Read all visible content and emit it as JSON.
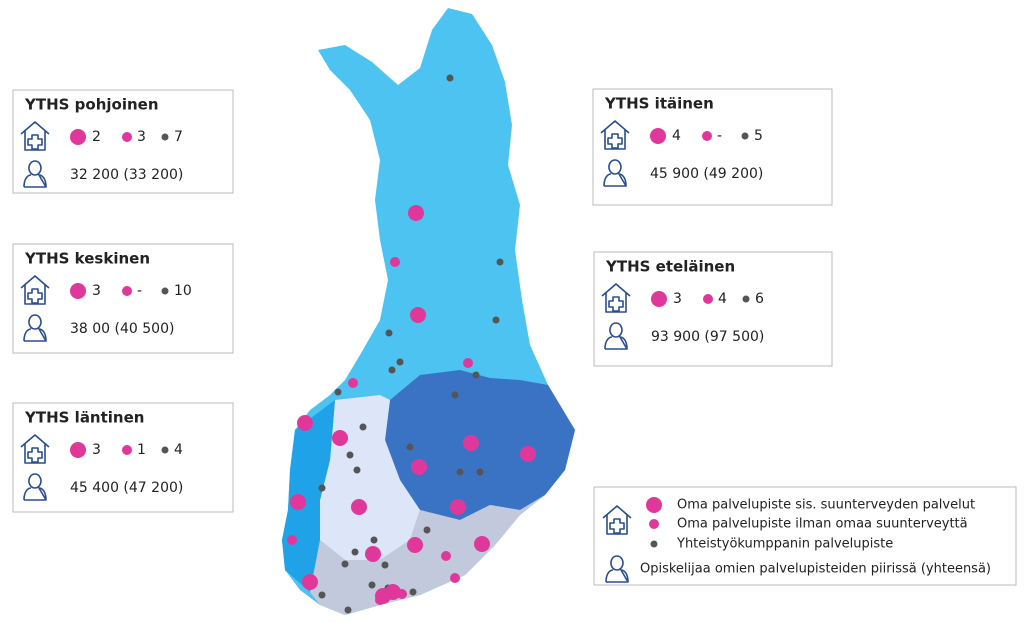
{
  "regions": [
    {
      "title": "YTHS pohjoinen",
      "big": "2",
      "small": "3",
      "partner": "7",
      "students": "32 200 (33 200)"
    },
    {
      "title": "YTHS keskinen",
      "big": "3",
      "small": "-",
      "partner": "10",
      "students": "38 00 (40 500)"
    },
    {
      "title": "YTHS läntinen",
      "big": "3",
      "small": "1",
      "partner": "4",
      "students": "45 400 (47 200)"
    },
    {
      "title": "YTHS itäinen",
      "big": "4",
      "small": "-",
      "partner": "5",
      "students": "45 900 (49 200)"
    },
    {
      "title": "YTHS eteläinen",
      "big": "3",
      "small": "4",
      "partner": "6",
      "students": "93 900 (97 500)"
    }
  ],
  "legend": {
    "big": "Oma palvelupiste sis. suunterveyden palvelut",
    "small": "Oma palvelupiste ilman omaa suunterveyttä",
    "partner": "Yhteistyökumppanin palvelupiste",
    "students": "Opiskelijaa omien palvelupisteiden piirissä (yhteensä)"
  }
}
